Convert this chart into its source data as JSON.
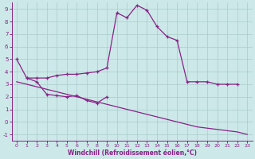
{
  "xlabel": "Windchill (Refroidissement éolien,°C)",
  "bg_color": "#cce8e8",
  "grid_color": "#aacccc",
  "line_color": "#882288",
  "ylim": [
    -1.5,
    9.5
  ],
  "xlim": [
    -0.5,
    23.5
  ],
  "yticks": [
    -1,
    0,
    1,
    2,
    3,
    4,
    5,
    6,
    7,
    8,
    9
  ],
  "xticks": [
    0,
    1,
    2,
    3,
    4,
    5,
    6,
    7,
    8,
    9,
    10,
    11,
    12,
    13,
    14,
    15,
    16,
    17,
    18,
    19,
    20,
    21,
    22,
    23
  ],
  "curve_upper_x": [
    0,
    1,
    2,
    3,
    4,
    5,
    6,
    7,
    8,
    9,
    10,
    11,
    12,
    13,
    14,
    15,
    16,
    17,
    18,
    19,
    20,
    21,
    22,
    23
  ],
  "curve_upper_y": [
    5.0,
    3.5,
    3.5,
    3.5,
    3.7,
    3.8,
    3.8,
    3.9,
    4.0,
    4.3,
    8.7,
    8.3,
    9.3,
    8.9,
    7.6,
    6.8,
    6.5,
    3.2,
    3.2,
    3.2,
    3.0,
    3.0,
    3.0,
    null
  ],
  "curve_zigzag_x": [
    1,
    2,
    3,
    4,
    5,
    6,
    7,
    8,
    9
  ],
  "curve_zigzag_y": [
    3.5,
    3.2,
    2.2,
    2.1,
    2.0,
    2.1,
    1.7,
    1.5,
    2.0
  ],
  "curve_slope_x": [
    0,
    1,
    2,
    3,
    4,
    5,
    6,
    7,
    8,
    9,
    10,
    11,
    12,
    13,
    14,
    15,
    16,
    17,
    18,
    19,
    20,
    21,
    22,
    23
  ],
  "curve_slope_y": [
    3.2,
    3.0,
    2.8,
    2.6,
    2.4,
    2.2,
    2.0,
    1.8,
    1.6,
    1.4,
    1.2,
    1.0,
    0.8,
    0.6,
    0.4,
    0.2,
    0.0,
    -0.2,
    -0.4,
    -0.5,
    -0.6,
    -0.7,
    -0.8,
    -1.0
  ]
}
